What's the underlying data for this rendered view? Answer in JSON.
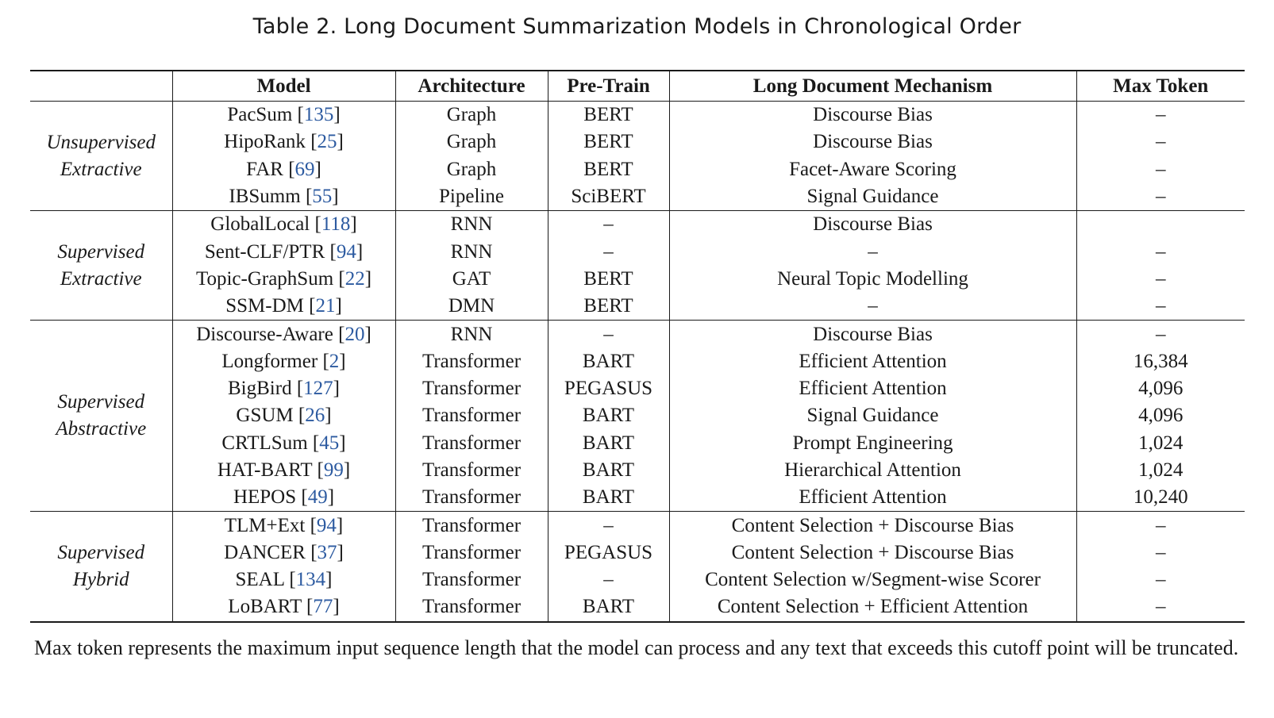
{
  "caption": "Table 2.  Long Document Summarization Models in Chronological Order",
  "headers": {
    "category": "",
    "model": "Model",
    "architecture": "Architecture",
    "pretrain": "Pre-Train",
    "mechanism": "Long Document Mechanism",
    "max_token": "Max Token"
  },
  "groups": [
    {
      "category_line1": "Unsupervised",
      "category_line2": "Extractive",
      "rows": [
        {
          "model": "PacSum",
          "ref": "135",
          "architecture": "Graph",
          "pretrain": "BERT",
          "mechanism": "Discourse Bias",
          "max_token": "–"
        },
        {
          "model": "HipoRank",
          "ref": "25",
          "architecture": "Graph",
          "pretrain": "BERT",
          "mechanism": "Discourse Bias",
          "max_token": "–"
        },
        {
          "model": "FAR",
          "ref": "69",
          "architecture": "Graph",
          "pretrain": "BERT",
          "mechanism": "Facet-Aware Scoring",
          "max_token": "–"
        },
        {
          "model": "IBSumm",
          "ref": "55",
          "architecture": "Pipeline",
          "pretrain": "SciBERT",
          "mechanism": "Signal Guidance",
          "max_token": "–"
        }
      ]
    },
    {
      "category_line1": "Supervised",
      "category_line2": "Extractive",
      "rows": [
        {
          "model": "GlobalLocal",
          "ref": "118",
          "architecture": "RNN",
          "pretrain": "–",
          "mechanism": "Discourse Bias",
          "max_token": ""
        },
        {
          "model": "Sent-CLF/PTR",
          "ref": "94",
          "architecture": "RNN",
          "pretrain": "–",
          "mechanism": "–",
          "max_token": "–"
        },
        {
          "model": "Topic-GraphSum",
          "ref": "22",
          "architecture": "GAT",
          "pretrain": "BERT",
          "mechanism": "Neural Topic Modelling",
          "max_token": "–"
        },
        {
          "model": "SSM-DM",
          "ref": "21",
          "architecture": "DMN",
          "pretrain": "BERT",
          "mechanism": "–",
          "max_token": "–"
        }
      ]
    },
    {
      "category_line1": "Supervised",
      "category_line2": "Abstractive",
      "rows": [
        {
          "model": "Discourse-Aware",
          "ref": "20",
          "architecture": "RNN",
          "pretrain": "–",
          "mechanism": "Discourse Bias",
          "max_token": "–"
        },
        {
          "model": "Longformer",
          "ref": "2",
          "architecture": "Transformer",
          "pretrain": "BART",
          "mechanism": "Efficient Attention",
          "max_token": "16,384"
        },
        {
          "model": "BigBird",
          "ref": "127",
          "architecture": "Transformer",
          "pretrain": "PEGASUS",
          "mechanism": "Efficient Attention",
          "max_token": "4,096"
        },
        {
          "model": "GSUM",
          "ref": "26",
          "architecture": "Transformer",
          "pretrain": "BART",
          "mechanism": "Signal Guidance",
          "max_token": "4,096"
        },
        {
          "model": "CRTLSum",
          "ref": "45",
          "architecture": "Transformer",
          "pretrain": "BART",
          "mechanism": "Prompt Engineering",
          "max_token": "1,024"
        },
        {
          "model": "HAT-BART",
          "ref": "99",
          "architecture": "Transformer",
          "pretrain": "BART",
          "mechanism": "Hierarchical Attention",
          "max_token": "1,024"
        },
        {
          "model": "HEPOS",
          "ref": "49",
          "architecture": "Transformer",
          "pretrain": "BART",
          "mechanism": "Efficient Attention",
          "max_token": "10,240"
        }
      ]
    },
    {
      "category_line1": "Supervised",
      "category_line2": "Hybrid",
      "rows": [
        {
          "model": "TLM+Ext",
          "ref": "94",
          "architecture": "Transformer",
          "pretrain": "–",
          "mechanism": "Content Selection + Discourse Bias",
          "max_token": "–"
        },
        {
          "model": "DANCER",
          "ref": "37",
          "architecture": "Transformer",
          "pretrain": "PEGASUS",
          "mechanism": "Content Selection + Discourse Bias",
          "max_token": "–"
        },
        {
          "model": "SEAL",
          "ref": "134",
          "architecture": "Transformer",
          "pretrain": "–",
          "mechanism": "Content Selection w/Segment-wise Scorer",
          "max_token": "–"
        },
        {
          "model": "LoBART",
          "ref": "77",
          "architecture": "Transformer",
          "pretrain": "BART",
          "mechanism": "Content Selection + Efficient Attention",
          "max_token": "–"
        }
      ]
    }
  ],
  "footnote": "Max token represents the maximum input sequence length that the model can process and any text that exceeds this cutoff point will be truncated.",
  "colors": {
    "text": "#1a1a1a",
    "citation": "#2c5aa0",
    "background": "#ffffff"
  }
}
